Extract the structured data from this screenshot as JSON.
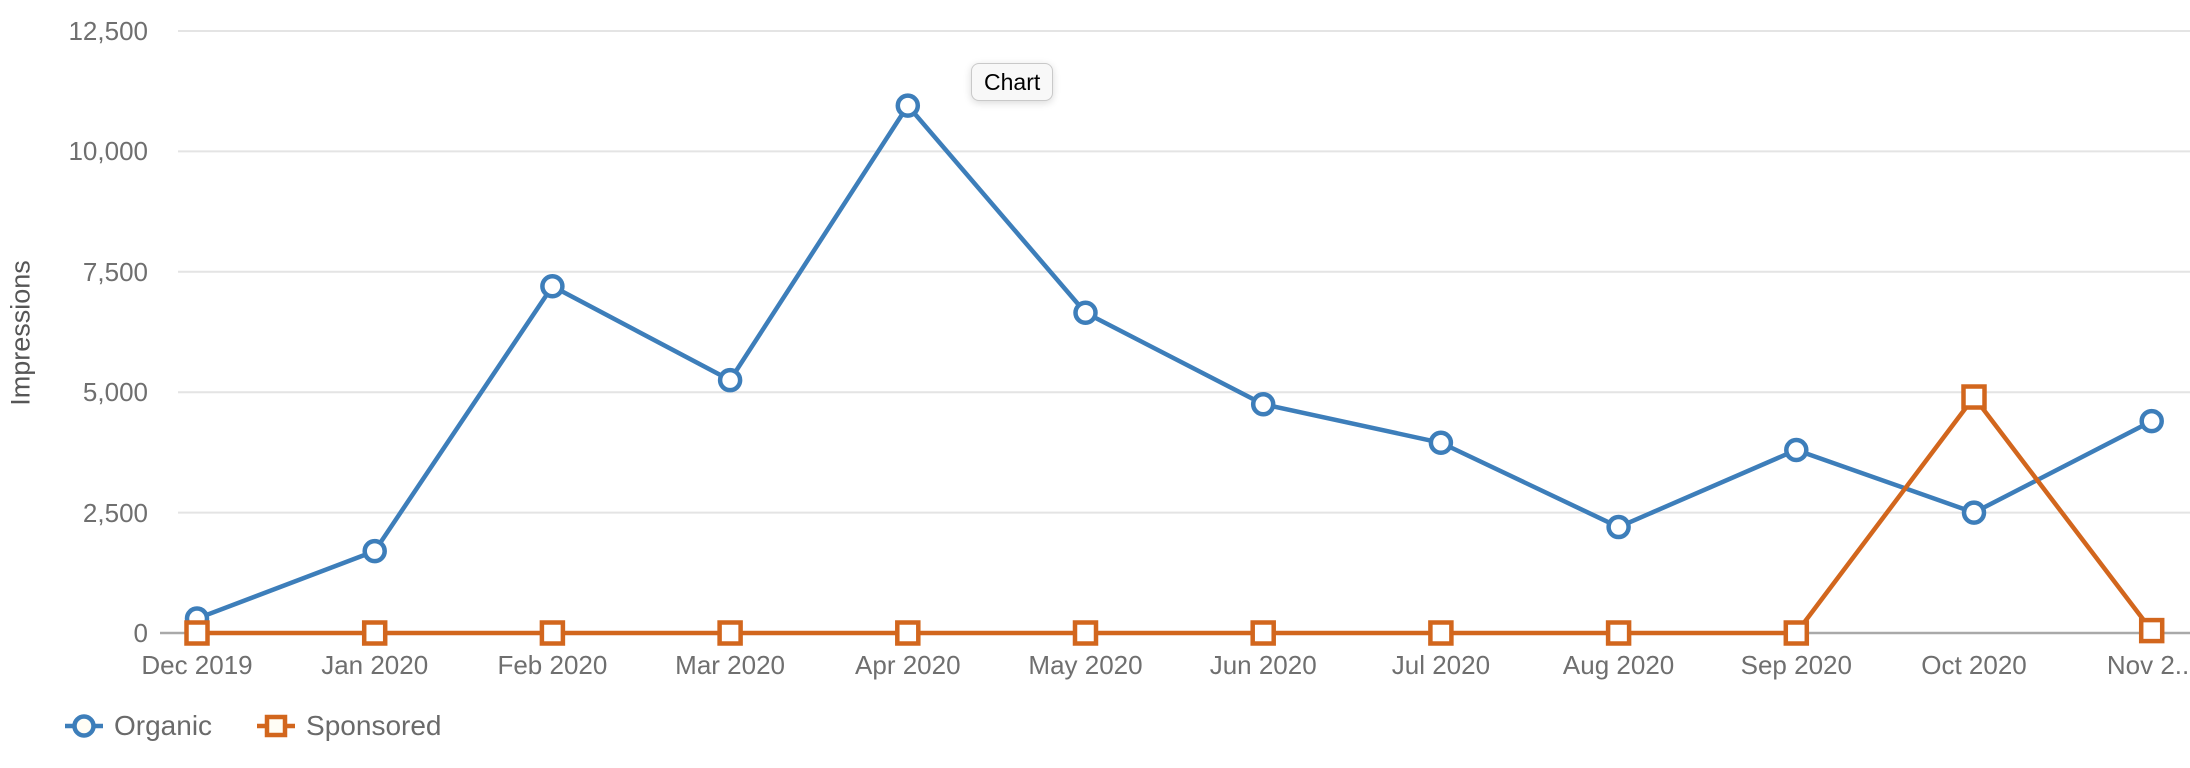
{
  "chart": {
    "tooltip_label": "Chart",
    "y_axis": {
      "title": "Impressions",
      "tick_labels": [
        "0",
        "2,500",
        "5,000",
        "7,500",
        "10,000",
        "12,500"
      ]
    },
    "x_axis": {
      "tick_labels": [
        "Dec 2019",
        "Jan 2020",
        "Feb 2020",
        "Mar 2020",
        "Apr 2020",
        "May 2020",
        "Jun 2020",
        "Jul 2020",
        "Aug 2020",
        "Sep 2020",
        "Oct 2020",
        "Nov 2..."
      ]
    },
    "legend": {
      "items": [
        "Organic",
        "Sponsored"
      ]
    },
    "colors": {
      "organic": "#3d7eba",
      "sponsored": "#d2661d",
      "gridline": "#e4e4e4",
      "axis_line": "#a9a9a9",
      "tick_text": "#6f6f6f"
    }
  },
  "chart_data": {
    "type": "line",
    "title": "",
    "xlabel": "",
    "ylabel": "Impressions",
    "categories": [
      "Dec 2019",
      "Jan 2020",
      "Feb 2020",
      "Mar 2020",
      "Apr 2020",
      "May 2020",
      "Jun 2020",
      "Jul 2020",
      "Aug 2020",
      "Sep 2020",
      "Oct 2020",
      "Nov 2..."
    ],
    "series": [
      {
        "name": "Organic",
        "marker": "circle",
        "color": "#3d7eba",
        "values": [
          300,
          1700,
          7200,
          5250,
          10950,
          6650,
          4750,
          3950,
          2200,
          3800,
          2500,
          4400
        ]
      },
      {
        "name": "Sponsored",
        "marker": "square",
        "color": "#d2661d",
        "values": [
          0,
          0,
          0,
          0,
          0,
          0,
          0,
          0,
          0,
          0,
          4900,
          50
        ]
      }
    ],
    "ylim": [
      0,
      12500
    ],
    "y_ticks": [
      0,
      2500,
      5000,
      7500,
      10000,
      12500
    ],
    "y_tick_labels": [
      "0",
      "2,500",
      "5,000",
      "7,500",
      "10,000",
      "12,500"
    ],
    "grid": "horizontal-only",
    "legend_position": "bottom-left",
    "annotations": [
      {
        "type": "tooltip",
        "text": "Chart"
      }
    ]
  }
}
